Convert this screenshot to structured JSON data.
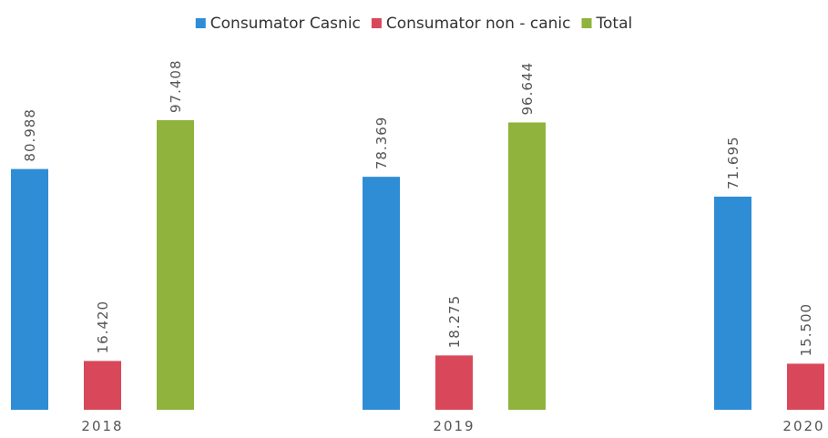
{
  "chart_data": {
    "type": "bar",
    "categories": [
      "2018",
      "2019",
      "2020"
    ],
    "series": [
      {
        "name": "Consumator Casnic",
        "color": "#2f8dd6",
        "values": [
          80.988,
          78.369,
          71.695
        ],
        "value_labels": [
          "80.988",
          "78.369",
          "71.695"
        ]
      },
      {
        "name": "Consumator non - canic",
        "color": "#d9485a",
        "values": [
          16.42,
          18.275,
          15.5
        ],
        "value_labels": [
          "16.420",
          "18.275",
          "15.500"
        ]
      },
      {
        "name": "Total",
        "color": "#8fb33c",
        "values": [
          97.408,
          96.644,
          null
        ],
        "value_labels": [
          "97.408",
          "96.644",
          null
        ]
      }
    ]
  }
}
